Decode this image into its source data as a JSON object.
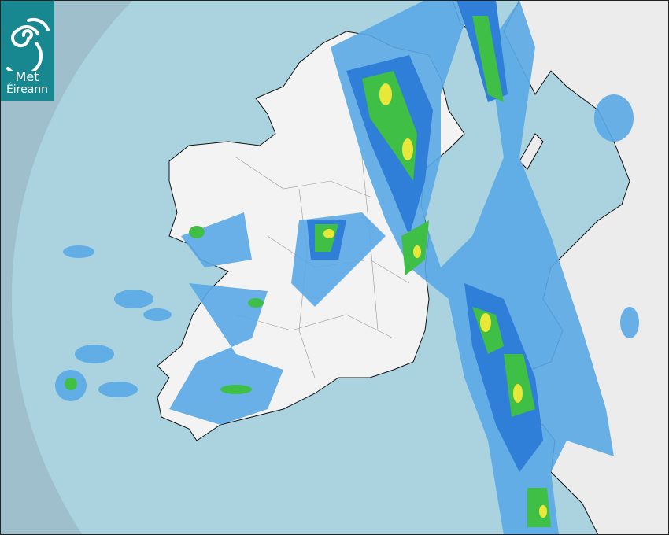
{
  "brand": {
    "line1": "Met",
    "line2": "Éireann"
  },
  "colors": {
    "background": "#9ebfcb",
    "radar_coverage": "#aad3df",
    "land": "#f2f2f2",
    "rain_light": "#5aa9e6",
    "rain_moderate": "#2f7fd9",
    "rain_heavy": "#3fbf45",
    "rain_very_heavy": "#e8e83a",
    "logo": "#17888f"
  },
  "icons": [
    "met-eireann-swirl-logo"
  ]
}
